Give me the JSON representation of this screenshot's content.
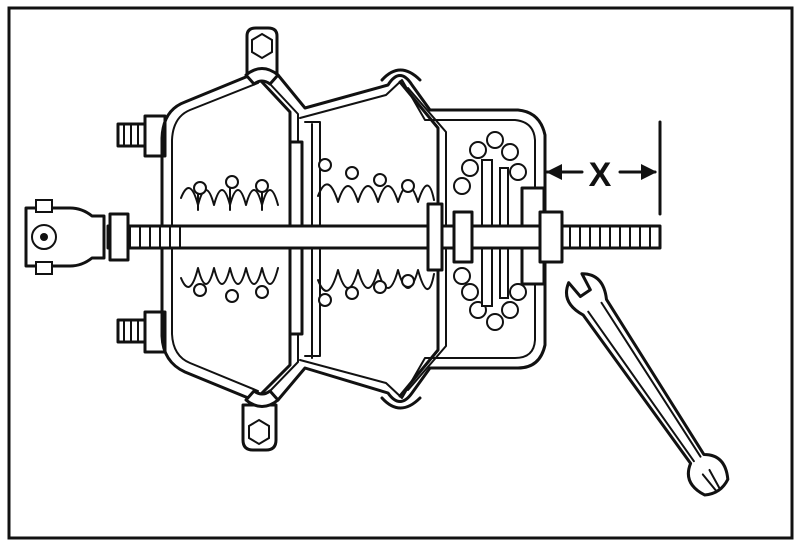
{
  "diagram": {
    "dimension_label": "X",
    "colors": {
      "line": "#111111",
      "background": "#ffffff"
    }
  }
}
